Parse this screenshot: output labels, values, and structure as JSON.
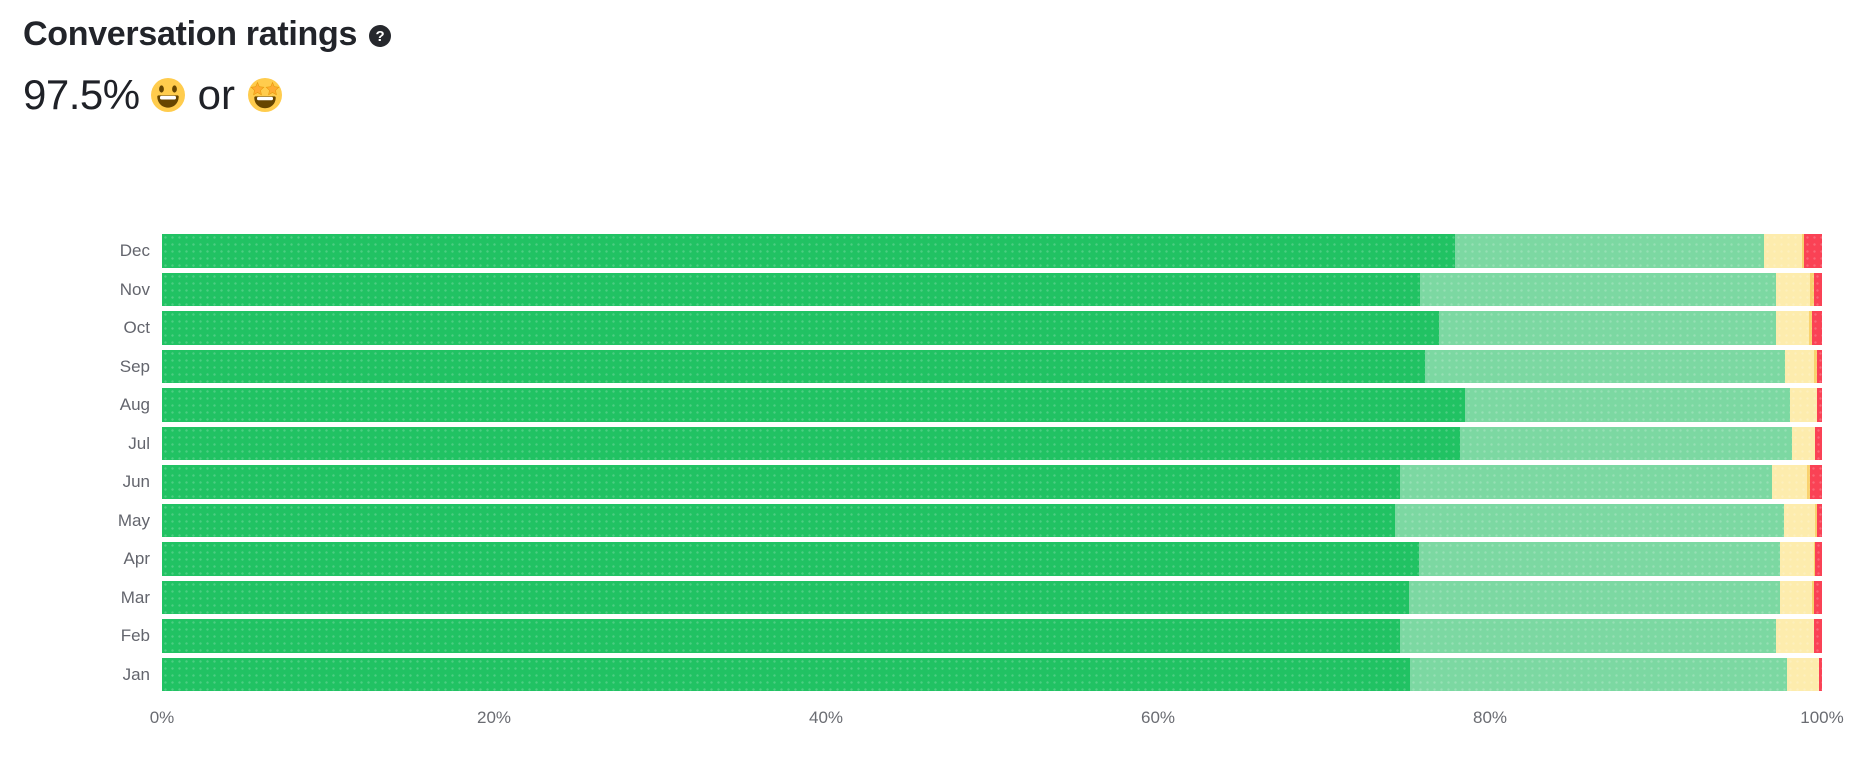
{
  "header": {
    "title": "Conversation ratings",
    "help_glyph": "?",
    "summary_value": "97.5%",
    "summary_conjunction": "or",
    "summary_emojis": [
      "grinning-face-emoji",
      "star-struck-emoji"
    ]
  },
  "chart_data": {
    "type": "bar",
    "orientation": "horizontal",
    "stacked": true,
    "unit": "percent",
    "title": "Conversation ratings",
    "categories": [
      "Dec",
      "Nov",
      "Oct",
      "Sep",
      "Aug",
      "Jul",
      "Jun",
      "May",
      "Apr",
      "Mar",
      "Feb",
      "Jan"
    ],
    "series": [
      {
        "name": "dark-green",
        "color": "#21C263",
        "values": [
          77.9,
          75.8,
          76.9,
          76.1,
          78.5,
          78.2,
          74.6,
          74.3,
          75.7,
          75.1,
          74.6,
          75.2
        ]
      },
      {
        "name": "light-green",
        "color": "#7CD8A2",
        "values": [
          18.6,
          21.4,
          20.3,
          21.7,
          19.6,
          20.0,
          22.4,
          23.4,
          21.8,
          22.4,
          22.6,
          22.7
        ]
      },
      {
        "name": "yellow",
        "color": "#FDECAD",
        "values": [
          2.3,
          2.1,
          2.0,
          1.7,
          1.6,
          1.4,
          2.1,
          1.9,
          2.0,
          1.9,
          2.3,
          1.9
        ]
      },
      {
        "name": "orange",
        "color": "#F9D26F",
        "values": [
          0.1,
          0.2,
          0.2,
          0.2,
          0.0,
          0.0,
          0.2,
          0.1,
          0.1,
          0.1,
          0.0,
          0.0
        ]
      },
      {
        "name": "red",
        "color": "#FA4255",
        "values": [
          1.1,
          0.5,
          0.6,
          0.3,
          0.3,
          0.4,
          0.7,
          0.3,
          0.4,
          0.5,
          0.5,
          0.2
        ]
      }
    ],
    "x_ticks": [
      "0%",
      "20%",
      "40%",
      "60%",
      "80%",
      "100%"
    ],
    "xlim": [
      0,
      100
    ],
    "xlabel": "",
    "ylabel": "",
    "grid": false,
    "legend": "none"
  }
}
